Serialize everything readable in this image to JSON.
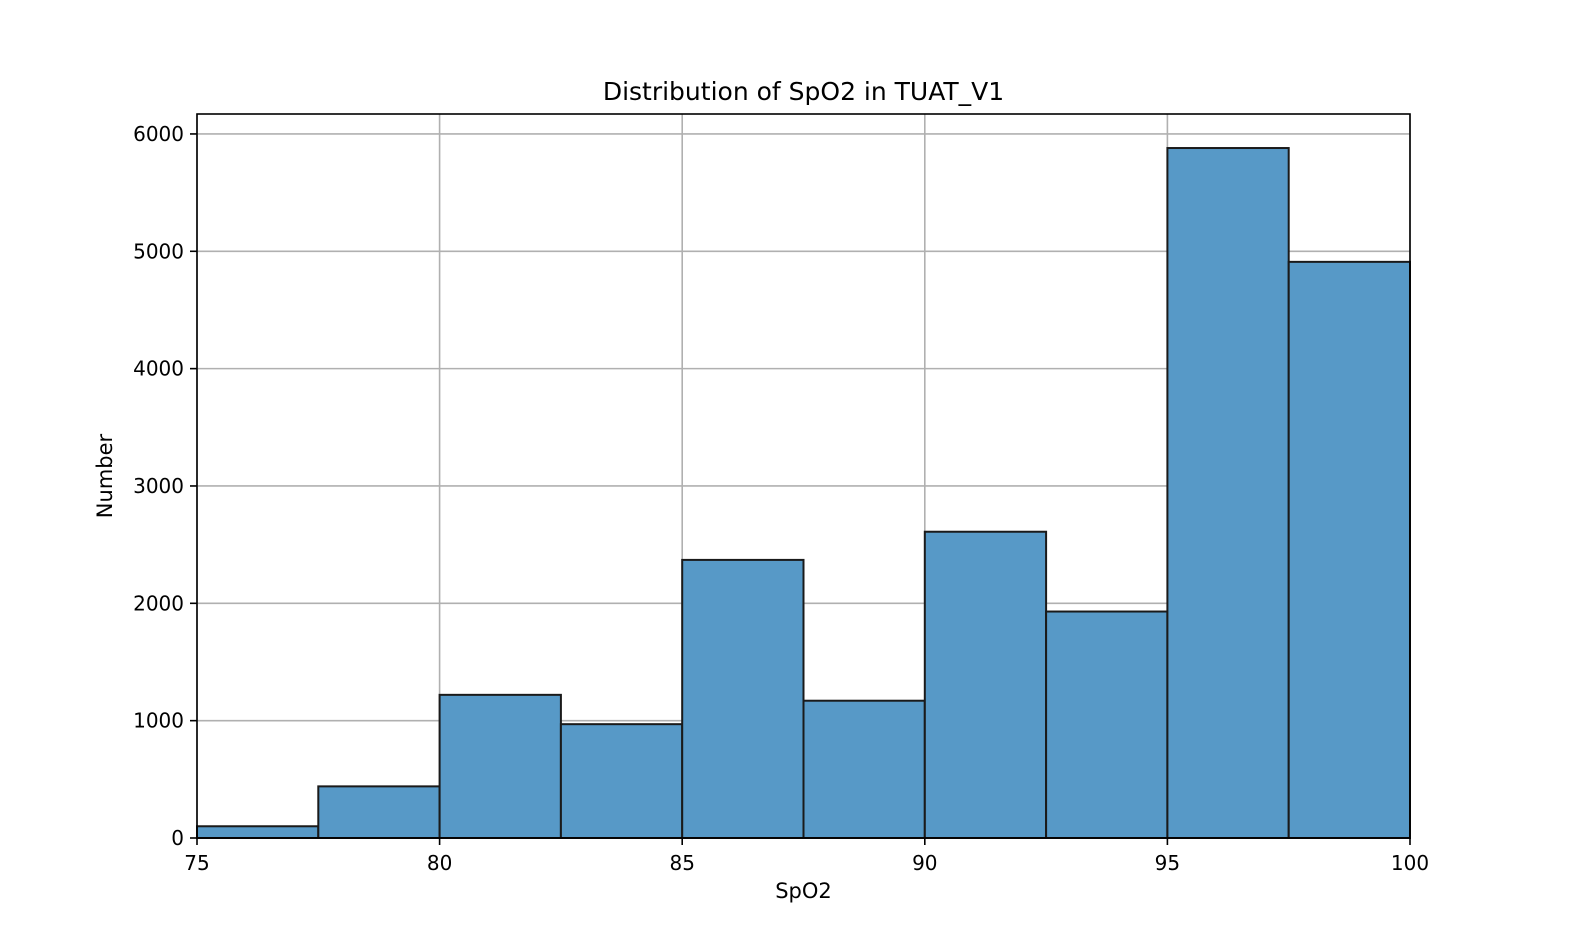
{
  "chart_data": {
    "type": "bar",
    "title": "Distribution of SpO2 in TUAT_V1",
    "xlabel": "SpO2",
    "ylabel": "Number",
    "xlim": [
      75,
      100
    ],
    "ylim": [
      0,
      6170
    ],
    "xticks": [
      75,
      80,
      85,
      90,
      95,
      100
    ],
    "yticks": [
      0,
      1000,
      2000,
      3000,
      4000,
      5000,
      6000
    ],
    "grid": true,
    "bar_color": "#5799c7",
    "edge_color": "#1a1a1a",
    "bins": [
      {
        "start": 75.0,
        "end": 77.5,
        "value": 100
      },
      {
        "start": 77.5,
        "end": 80.0,
        "value": 440
      },
      {
        "start": 80.0,
        "end": 82.5,
        "value": 1220
      },
      {
        "start": 82.5,
        "end": 85.0,
        "value": 970
      },
      {
        "start": 85.0,
        "end": 87.5,
        "value": 2370
      },
      {
        "start": 87.5,
        "end": 90.0,
        "value": 1170
      },
      {
        "start": 90.0,
        "end": 92.5,
        "value": 2610
      },
      {
        "start": 92.5,
        "end": 95.0,
        "value": 1930
      },
      {
        "start": 95.0,
        "end": 97.5,
        "value": 5880
      },
      {
        "start": 97.5,
        "end": 100.0,
        "value": 4910
      }
    ]
  }
}
